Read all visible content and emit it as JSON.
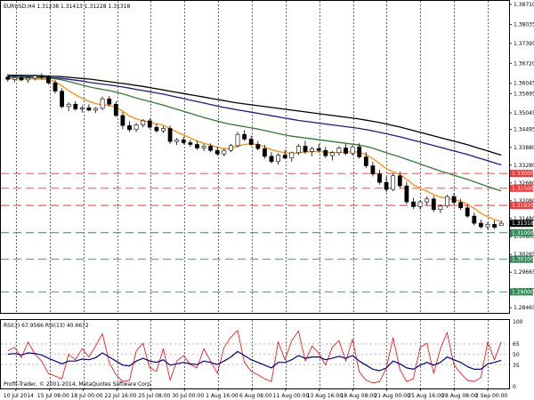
{
  "symbol": {
    "header": "EURUSD,H4  1.31238 1.31413 1.31228 1.31318"
  },
  "rsi": {
    "header": "RSI(3) 67.9566  RSI(13) 40.6672",
    "levels": [
      "65",
      "50",
      "35"
    ],
    "scale_max": "100",
    "scale_min": "0"
  },
  "watermark": "Profit-Trader, © 2001-2014, MetaQuotes Software Corp.",
  "price_axis": {
    "ticks": [
      "1.38710",
      "1.38035",
      "1.37395",
      "1.36720",
      "1.36045",
      "1.35695",
      "1.35045",
      "1.34495",
      "1.33880",
      "1.33280",
      "1.32680",
      "1.32080",
      "1.31480",
      "1.30865",
      "1.30265",
      "1.29665",
      "1.29050",
      "1.28465"
    ],
    "current_price": "1.31318",
    "level_labels": [
      "1.33000",
      "1.32500",
      "1.31920",
      "1.31000",
      "1.30100",
      "1.29000"
    ]
  },
  "time_axis": {
    "labels": [
      "10 Jul 2014",
      "15 Jul 08:00",
      "18 Jul 00:00",
      "22 Jul 16:00",
      "25 Jul 08:00",
      "30 Jul 00:00",
      "1 Aug 16:00",
      "6 Aug 08:00",
      "11 Aug 00:00",
      "13 Aug 16:00",
      "18 Aug 08:00",
      "21 Aug 00:00",
      "25 Aug 16:00",
      "28 Aug 08:00",
      "2 Sep 00:00"
    ]
  },
  "colors": {
    "background": "#ffffff",
    "bullish_candle": "#ffffff",
    "bearish_candle": "#000000",
    "ma_fast": "#ff8c00",
    "ma_mid": "#2e7d32",
    "ma_slow": "#1a1a8c",
    "ma_slowest": "#000000",
    "resistance_line": "#ff3333",
    "support_line": "#2e8b57",
    "rsi_fast": "#ff0000",
    "rsi_slow": "#00008b",
    "grid": "#000000"
  },
  "chart_data": {
    "type": "candlestick",
    "price_range": [
      1.2835,
      1.388
    ],
    "candles": [
      [
        1.3626,
        1.3636,
        1.361,
        1.3618
      ],
      [
        1.3618,
        1.363,
        1.3608,
        1.3624
      ],
      [
        1.3624,
        1.3632,
        1.3612,
        1.3616
      ],
      [
        1.3616,
        1.3628,
        1.3606,
        1.3622
      ],
      [
        1.3622,
        1.3634,
        1.3614,
        1.363
      ],
      [
        1.363,
        1.3638,
        1.3618,
        1.3626
      ],
      [
        1.3626,
        1.3632,
        1.36,
        1.3606
      ],
      [
        1.3606,
        1.3616,
        1.357,
        1.3578
      ],
      [
        1.3578,
        1.3588,
        1.352,
        1.3526
      ],
      [
        1.3526,
        1.354,
        1.351,
        1.3534
      ],
      [
        1.3534,
        1.3544,
        1.3512,
        1.3518
      ],
      [
        1.3518,
        1.353,
        1.3506,
        1.3522
      ],
      [
        1.3522,
        1.3534,
        1.351,
        1.3514
      ],
      [
        1.3514,
        1.3524,
        1.3504,
        1.352
      ],
      [
        1.352,
        1.356,
        1.3514,
        1.3552
      ],
      [
        1.3552,
        1.3562,
        1.3526,
        1.3534
      ],
      [
        1.3534,
        1.3544,
        1.349,
        1.3496
      ],
      [
        1.3496,
        1.3508,
        1.345,
        1.3462
      ],
      [
        1.3462,
        1.3476,
        1.344,
        1.3448
      ],
      [
        1.3448,
        1.347,
        1.344,
        1.3464
      ],
      [
        1.3464,
        1.3484,
        1.3456,
        1.3478
      ],
      [
        1.3478,
        1.3486,
        1.345,
        1.3456
      ],
      [
        1.3456,
        1.3468,
        1.3438,
        1.3444
      ],
      [
        1.3444,
        1.346,
        1.3436,
        1.3452
      ],
      [
        1.3452,
        1.3462,
        1.34,
        1.3408
      ],
      [
        1.3408,
        1.342,
        1.3396,
        1.3414
      ],
      [
        1.3414,
        1.3424,
        1.3398,
        1.3404
      ],
      [
        1.3404,
        1.3414,
        1.339,
        1.3398
      ],
      [
        1.3398,
        1.341,
        1.338,
        1.3386
      ],
      [
        1.3386,
        1.34,
        1.3376,
        1.3392
      ],
      [
        1.3392,
        1.3402,
        1.3372,
        1.3378
      ],
      [
        1.3378,
        1.339,
        1.336,
        1.3366
      ],
      [
        1.3366,
        1.3384,
        1.3358,
        1.3378
      ],
      [
        1.3378,
        1.34,
        1.3372,
        1.3394
      ],
      [
        1.3394,
        1.344,
        1.3388,
        1.3432
      ],
      [
        1.3432,
        1.3446,
        1.341,
        1.3416
      ],
      [
        1.3416,
        1.3428,
        1.3392,
        1.3398
      ],
      [
        1.3398,
        1.341,
        1.3378,
        1.3384
      ],
      [
        1.3384,
        1.3396,
        1.335,
        1.3358
      ],
      [
        1.3358,
        1.3372,
        1.3334,
        1.334
      ],
      [
        1.334,
        1.3368,
        1.333,
        1.3362
      ],
      [
        1.3362,
        1.338,
        1.3348,
        1.3352
      ],
      [
        1.3352,
        1.3374,
        1.334,
        1.337
      ],
      [
        1.337,
        1.34,
        1.3362,
        1.3392
      ],
      [
        1.3392,
        1.341,
        1.3366,
        1.3374
      ],
      [
        1.3374,
        1.339,
        1.3358,
        1.3384
      ],
      [
        1.3384,
        1.34,
        1.337,
        1.3378
      ],
      [
        1.3378,
        1.339,
        1.3352,
        1.336
      ],
      [
        1.336,
        1.3376,
        1.3344,
        1.337
      ],
      [
        1.337,
        1.3392,
        1.336,
        1.3386
      ],
      [
        1.3386,
        1.34,
        1.3362,
        1.3368
      ],
      [
        1.3368,
        1.3396,
        1.336,
        1.339
      ],
      [
        1.339,
        1.3402,
        1.335,
        1.3356
      ],
      [
        1.3356,
        1.3372,
        1.3318,
        1.3326
      ],
      [
        1.3326,
        1.334,
        1.329,
        1.3298
      ],
      [
        1.3298,
        1.3312,
        1.3262,
        1.327
      ],
      [
        1.327,
        1.329,
        1.3236,
        1.3246
      ],
      [
        1.3246,
        1.33,
        1.324,
        1.3292
      ],
      [
        1.3292,
        1.3306,
        1.325,
        1.3258
      ],
      [
        1.3258,
        1.3272,
        1.3196,
        1.3204
      ],
      [
        1.3204,
        1.3218,
        1.318,
        1.3188
      ],
      [
        1.3188,
        1.321,
        1.3178,
        1.3204
      ],
      [
        1.3204,
        1.3222,
        1.3192,
        1.3214
      ],
      [
        1.3214,
        1.3224,
        1.317,
        1.3178
      ],
      [
        1.3178,
        1.3196,
        1.3166,
        1.319
      ],
      [
        1.319,
        1.3228,
        1.3184,
        1.3222
      ],
      [
        1.3222,
        1.3234,
        1.3196,
        1.3202
      ],
      [
        1.3202,
        1.3214,
        1.3176,
        1.3184
      ],
      [
        1.3184,
        1.3196,
        1.315,
        1.3156
      ],
      [
        1.3156,
        1.3168,
        1.3124,
        1.3132
      ],
      [
        1.3132,
        1.3144,
        1.3114,
        1.312
      ],
      [
        1.312,
        1.3136,
        1.311,
        1.3128
      ],
      [
        1.3128,
        1.3141,
        1.3112,
        1.3118
      ],
      [
        1.3124,
        1.3141,
        1.3123,
        1.3132
      ]
    ],
    "ma_fast": [
      1.362,
      1.362,
      1.362,
      1.3619,
      1.3619,
      1.3618,
      1.3616,
      1.361,
      1.3596,
      1.358,
      1.3566,
      1.3554,
      1.3544,
      1.3536,
      1.3532,
      1.353,
      1.3524,
      1.351,
      1.3494,
      1.3484,
      1.3478,
      1.3474,
      1.3468,
      1.3463,
      1.3452,
      1.344,
      1.343,
      1.342,
      1.341,
      1.3402,
      1.3396,
      1.3388,
      1.3384,
      1.3384,
      1.3392,
      1.3398,
      1.34,
      1.3398,
      1.339,
      1.338,
      1.3374,
      1.337,
      1.3368,
      1.337,
      1.3372,
      1.3374,
      1.3374,
      1.3372,
      1.337,
      1.3371,
      1.3372,
      1.3374,
      1.3372,
      1.3364,
      1.335,
      1.3334,
      1.3316,
      1.3306,
      1.3296,
      1.328,
      1.3262,
      1.325,
      1.324,
      1.3228,
      1.322,
      1.3216,
      1.3212,
      1.3206,
      1.3196,
      1.3182,
      1.3166,
      1.3154,
      1.3144,
      1.3138
    ],
    "ma_mid": [
      1.3625,
      1.3625,
      1.3625,
      1.3624,
      1.3624,
      1.3623,
      1.3622,
      1.362,
      1.3616,
      1.3611,
      1.3605,
      1.3599,
      1.3593,
      1.3588,
      1.3584,
      1.358,
      1.3575,
      1.3569,
      1.3562,
      1.3555,
      1.3549,
      1.3543,
      1.3537,
      1.3531,
      1.3524,
      1.3517,
      1.351,
      1.3503,
      1.3496,
      1.3489,
      1.3483,
      1.3477,
      1.3471,
      1.3466,
      1.3462,
      1.3458,
      1.3454,
      1.345,
      1.3445,
      1.344,
      1.3435,
      1.343,
      1.3426,
      1.3423,
      1.342,
      1.3417,
      1.3414,
      1.3411,
      1.3408,
      1.3405,
      1.3402,
      1.3399,
      1.3396,
      1.3391,
      1.3385,
      1.3378,
      1.337,
      1.3363,
      1.3356,
      1.3348,
      1.334,
      1.3332,
      1.3324,
      1.3316,
      1.3308,
      1.3301,
      1.3294,
      1.3287,
      1.328,
      1.3272,
      1.3264,
      1.3256,
      1.3248,
      1.3241
    ],
    "ma_slow": [
      1.3628,
      1.3628,
      1.3627,
      1.3627,
      1.3626,
      1.3625,
      1.3624,
      1.3623,
      1.3621,
      1.3618,
      1.3615,
      1.3612,
      1.3608,
      1.3605,
      1.3602,
      1.3599,
      1.3596,
      1.3592,
      1.3588,
      1.3584,
      1.358,
      1.3576,
      1.3572,
      1.3568,
      1.3563,
      1.3558,
      1.3553,
      1.3548,
      1.3543,
      1.3538,
      1.3533,
      1.3528,
      1.3523,
      1.3519,
      1.3515,
      1.3511,
      1.3507,
      1.3503,
      1.3499,
      1.3495,
      1.3491,
      1.3487,
      1.3483,
      1.3479,
      1.3476,
      1.3473,
      1.347,
      1.3467,
      1.3464,
      1.3461,
      1.3458,
      1.3455,
      1.3452,
      1.3448,
      1.3444,
      1.3439,
      1.3434,
      1.3429,
      1.3424,
      1.3418,
      1.3412,
      1.3406,
      1.34,
      1.3394,
      1.3388,
      1.3382,
      1.3376,
      1.337,
      1.3364,
      1.3357,
      1.335,
      1.3343,
      1.3336,
      1.3329
    ],
    "ma_slowest": [
      1.3632,
      1.3632,
      1.3632,
      1.3631,
      1.3631,
      1.363,
      1.3629,
      1.3628,
      1.3627,
      1.3625,
      1.3623,
      1.3621,
      1.3619,
      1.3616,
      1.3613,
      1.361,
      1.3607,
      1.3604,
      1.3601,
      1.3597,
      1.3594,
      1.359,
      1.3586,
      1.3582,
      1.3578,
      1.3574,
      1.357,
      1.3566,
      1.3562,
      1.3558,
      1.3554,
      1.355,
      1.3546,
      1.3542,
      1.3538,
      1.3535,
      1.3532,
      1.3529,
      1.3526,
      1.3523,
      1.352,
      1.3517,
      1.3514,
      1.3511,
      1.3508,
      1.3505,
      1.3502,
      1.3499,
      1.3496,
      1.3493,
      1.349,
      1.3487,
      1.3484,
      1.348,
      1.3476,
      1.3472,
      1.3467,
      1.3462,
      1.3457,
      1.3451,
      1.3445,
      1.3439,
      1.3433,
      1.3427,
      1.3421,
      1.3415,
      1.3409,
      1.3403,
      1.3397,
      1.339,
      1.3383,
      1.3376,
      1.3369,
      1.3362
    ],
    "rsi_fast": [
      55,
      60,
      45,
      68,
      50,
      40,
      22,
      18,
      14,
      50,
      42,
      58,
      46,
      62,
      80,
      38,
      20,
      10,
      12,
      55,
      66,
      30,
      25,
      58,
      12,
      40,
      48,
      35,
      30,
      58,
      40,
      22,
      60,
      75,
      85,
      38,
      25,
      20,
      14,
      10,
      68,
      42,
      70,
      84,
      40,
      62,
      52,
      34,
      60,
      70,
      40,
      72,
      24,
      12,
      8,
      10,
      30,
      74,
      28,
      10,
      14,
      60,
      66,
      22,
      58,
      82,
      35,
      22,
      12,
      10,
      16,
      68,
      42,
      68
    ],
    "rsi_slow": [
      50,
      51,
      49,
      52,
      51,
      49,
      44,
      40,
      36,
      40,
      40,
      43,
      42,
      45,
      52,
      46,
      40,
      34,
      33,
      40,
      44,
      40,
      38,
      42,
      34,
      36,
      38,
      36,
      35,
      40,
      38,
      35,
      40,
      46,
      54,
      48,
      42,
      38,
      34,
      30,
      38,
      38,
      42,
      48,
      44,
      46,
      46,
      42,
      44,
      47,
      44,
      48,
      40,
      34,
      28,
      26,
      30,
      40,
      36,
      30,
      28,
      34,
      38,
      34,
      38,
      46,
      42,
      38,
      32,
      28,
      28,
      36,
      38,
      41
    ],
    "horizontal_levels": {
      "resistance": [
        1.33,
        1.325,
        1.3192
      ],
      "support": [
        1.31,
        1.301,
        1.29
      ]
    }
  }
}
